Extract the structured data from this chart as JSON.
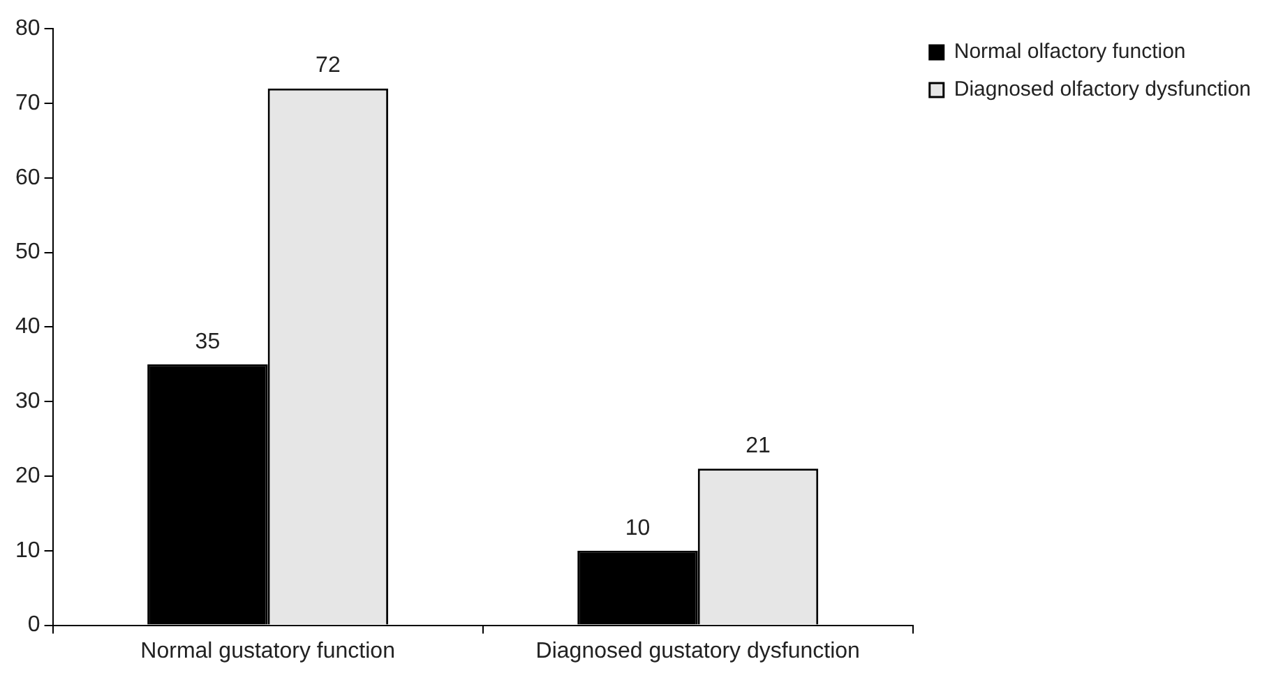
{
  "chart_data": {
    "type": "bar",
    "categories": [
      "Normal gustatory function",
      "Diagnosed gustatory dysfunction"
    ],
    "series": [
      {
        "name": "Normal olfactory function",
        "color": "#000000",
        "values": [
          35,
          10
        ]
      },
      {
        "name": "Diagnosed olfactory dysfunction",
        "color": "#e6e6e6",
        "values": [
          72,
          21
        ]
      }
    ],
    "ylim": [
      0,
      80
    ],
    "yticks": [
      0,
      10,
      20,
      30,
      40,
      50,
      60,
      70,
      80
    ],
    "grid": false,
    "legend": "top right",
    "data_labels": true
  }
}
